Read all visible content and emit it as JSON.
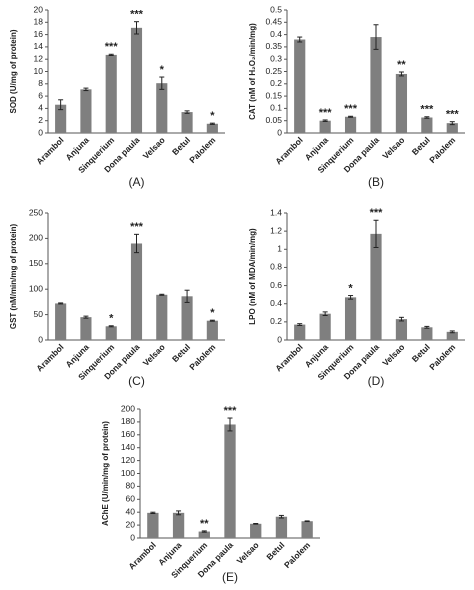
{
  "chart_data": [
    {
      "type": "bar",
      "panel_label": "(A)",
      "y_label": "SOD (U/mg of protein)",
      "categories": [
        "Arambol",
        "Anjuna",
        "Sinquerium",
        "Dona paula",
        "Velsao",
        "Betul",
        "Palolem"
      ],
      "values": [
        4.6,
        7.1,
        12.7,
        17.1,
        8.1,
        3.4,
        1.5
      ],
      "errors": [
        0.8,
        0.2,
        0.1,
        1.0,
        1.0,
        0.2,
        0.1
      ],
      "annotations": [
        null,
        null,
        "***",
        "***",
        "*",
        null,
        "*"
      ],
      "color": "#7f7f7f",
      "ylim": [
        0,
        20
      ],
      "yticks": [
        0,
        2,
        4,
        6,
        8,
        10,
        12,
        14,
        16,
        18,
        20
      ]
    },
    {
      "type": "bar",
      "panel_label": "(B)",
      "y_label": "CAT (nM of H₂O₂/min/mg)",
      "categories": [
        "Arambol",
        "Anjuna",
        "Sinquerium",
        "Dona paula",
        "Velsao",
        "Betul",
        "Palolem"
      ],
      "values": [
        0.38,
        0.05,
        0.066,
        0.39,
        0.24,
        0.063,
        0.04
      ],
      "errors": [
        0.01,
        0.003,
        0.002,
        0.05,
        0.008,
        0.003,
        0.006
      ],
      "annotations": [
        null,
        "***",
        "***",
        null,
        "**",
        "***",
        "***"
      ],
      "color": "#7f7f7f",
      "ylim": [
        0,
        0.5
      ],
      "yticks": [
        0,
        0.05,
        0.1,
        0.15,
        0.2,
        0.25,
        0.3,
        0.35,
        0.4,
        0.45,
        0.5
      ]
    },
    {
      "type": "bar",
      "panel_label": "(C)",
      "y_label": "GST (nM/min/mg of protein)",
      "categories": [
        "Arambol",
        "Anjuna",
        "Sinquerium",
        "Dona paula",
        "Velsao",
        "Betul",
        "Palolem"
      ],
      "values": [
        72,
        45,
        27,
        190,
        89,
        86,
        38
      ],
      "errors": [
        1,
        2,
        1,
        18,
        1,
        12,
        1
      ],
      "annotations": [
        null,
        null,
        "*",
        "***",
        null,
        null,
        "*"
      ],
      "color": "#7f7f7f",
      "ylim": [
        0,
        250
      ],
      "yticks": [
        0,
        50,
        100,
        150,
        200,
        250
      ]
    },
    {
      "type": "bar",
      "panel_label": "(D)",
      "y_label": "LPO (nM of MDA/min/mg)",
      "categories": [
        "Arambol",
        "Anjuna",
        "Sinquerium",
        "Dona paula",
        "Velsao",
        "Betul",
        "Palolem"
      ],
      "values": [
        0.17,
        0.29,
        0.47,
        1.17,
        0.23,
        0.14,
        0.09
      ],
      "errors": [
        0.01,
        0.02,
        0.02,
        0.15,
        0.02,
        0.01,
        0.01
      ],
      "annotations": [
        null,
        null,
        "*",
        "***",
        null,
        null,
        null
      ],
      "color": "#7f7f7f",
      "ylim": [
        0,
        1.4
      ],
      "yticks": [
        0,
        0.2,
        0.4,
        0.6,
        0.8,
        1,
        1.2,
        1.4
      ]
    },
    {
      "type": "bar",
      "panel_label": "(E)",
      "y_label": "AChE (U/min/mg of protein)",
      "categories": [
        "Arambol",
        "Anjuna",
        "Sinquerium",
        "Dona paula",
        "Velsao",
        "Betul",
        "Palolem"
      ],
      "values": [
        39,
        39,
        10,
        176,
        22,
        33,
        26
      ],
      "errors": [
        1,
        3,
        1,
        10,
        0.5,
        2,
        0.5
      ],
      "annotations": [
        null,
        null,
        "**",
        "***",
        null,
        null,
        null
      ],
      "color": "#7f7f7f",
      "ylim": [
        0,
        200
      ],
      "yticks": [
        0,
        20,
        40,
        60,
        80,
        100,
        120,
        140,
        160,
        180,
        200
      ]
    }
  ]
}
